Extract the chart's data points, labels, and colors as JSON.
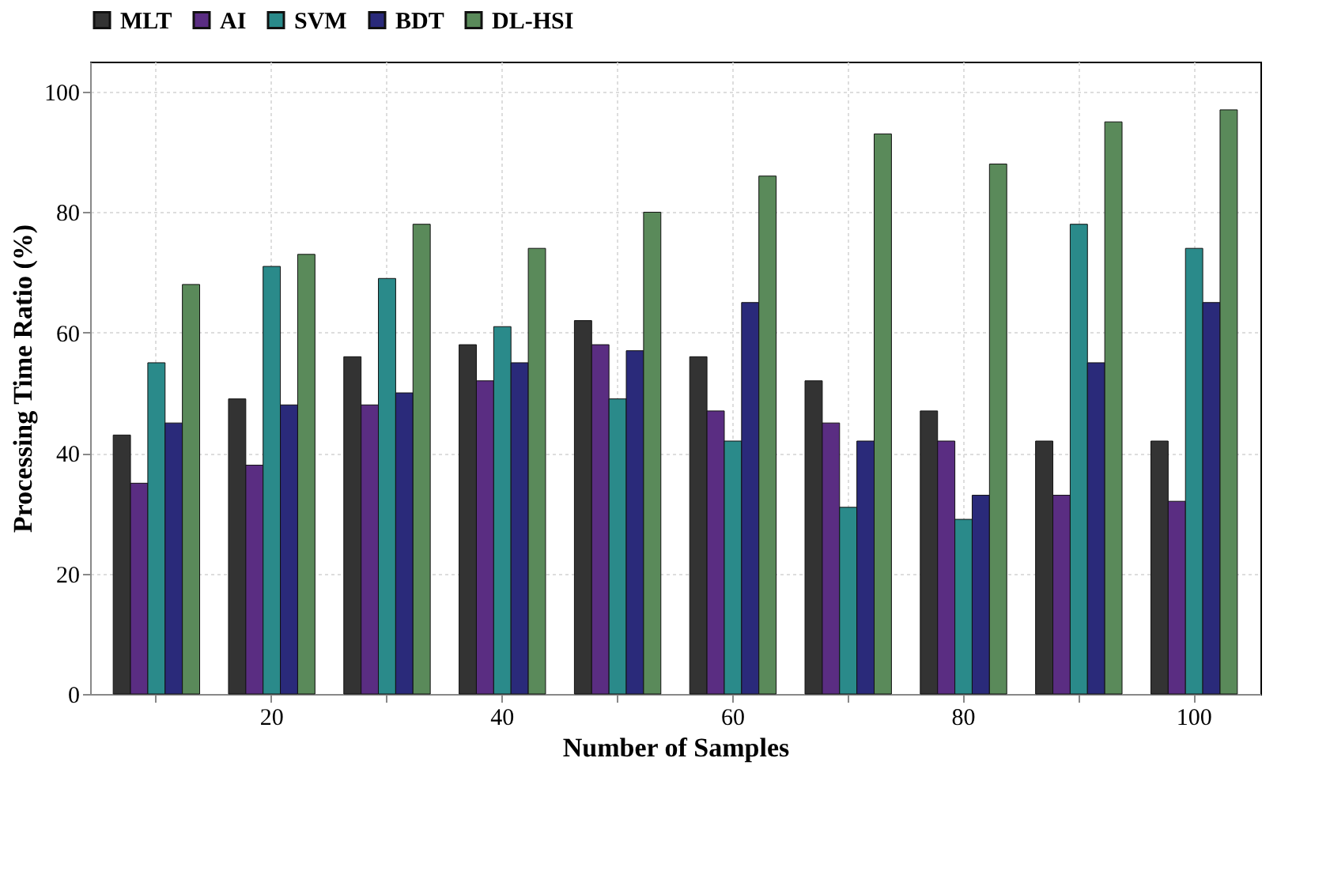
{
  "chart_data": {
    "type": "bar",
    "xlabel": "Number of Samples",
    "ylabel": "Processing Time Ratio (%)",
    "categories": [
      null,
      "20",
      null,
      "40",
      null,
      "60",
      null,
      "80",
      null,
      "100"
    ],
    "series": [
      {
        "name": "MLT",
        "color": "#333333",
        "values": [
          43,
          49,
          56,
          58,
          62,
          56,
          52,
          47,
          42,
          42
        ]
      },
      {
        "name": "AI",
        "color": "#5a2d82",
        "values": [
          35,
          38,
          48,
          52,
          58,
          47,
          45,
          42,
          33,
          32
        ]
      },
      {
        "name": "SVM",
        "color": "#2a8a8a",
        "values": [
          55,
          71,
          69,
          61,
          49,
          42,
          31,
          29,
          78,
          74
        ]
      },
      {
        "name": "BDT",
        "color": "#2a2a7a",
        "values": [
          45,
          48,
          50,
          55,
          57,
          65,
          42,
          33,
          55,
          65
        ]
      },
      {
        "name": "DL-HSI",
        "color": "#5a8a5a",
        "values": [
          68,
          73,
          78,
          74,
          80,
          86,
          93,
          88,
          95,
          97
        ]
      }
    ],
    "ylim": [
      0,
      105
    ],
    "yticks": [
      0,
      20,
      40,
      60,
      80,
      100
    ],
    "grid": true,
    "legend": "top"
  }
}
